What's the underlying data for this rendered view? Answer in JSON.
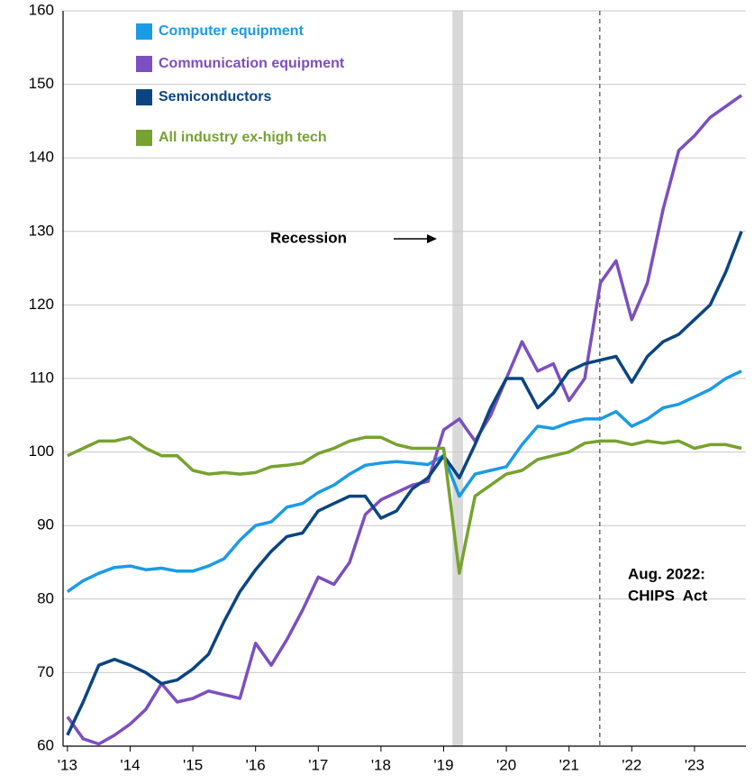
{
  "chart_data": {
    "type": "line",
    "x": [
      2013,
      2013.25,
      2013.5,
      2013.75,
      2014,
      2014.25,
      2014.5,
      2014.75,
      2015,
      2015.25,
      2015.5,
      2015.75,
      2016,
      2016.25,
      2016.5,
      2016.75,
      2017,
      2017.25,
      2017.5,
      2017.75,
      2018,
      2018.25,
      2018.5,
      2018.75,
      2019,
      2019.25,
      2019.5,
      2019.75,
      2020,
      2020.25,
      2020.5,
      2020.75,
      2021,
      2021.25,
      2021.5,
      2021.75,
      2022,
      2022.25,
      2022.5,
      2022.75,
      2023,
      2023.25,
      2023.5,
      2023.75
    ],
    "series": [
      {
        "name": "Computer equipment",
        "color": "#1a9be6",
        "values": [
          81,
          82.5,
          83.5,
          84.3,
          84.5,
          84,
          84.2,
          83.8,
          83.8,
          84.5,
          85.5,
          88,
          90,
          90.5,
          92.5,
          93,
          94.5,
          95.5,
          97,
          98.2,
          98.5,
          98.7,
          98.5,
          98.3,
          99.5,
          94,
          97,
          97.5,
          98,
          101,
          103.5,
          103.2,
          104,
          104.5,
          104.5,
          105.5,
          103.5,
          104.5,
          106,
          106.5,
          107.5,
          108.5,
          110,
          111
        ]
      },
      {
        "name": "Communication equipment",
        "color": "#7b4fc0",
        "values": [
          64,
          61,
          60.3,
          61.5,
          63,
          65,
          68.5,
          66,
          66.5,
          67.5,
          67,
          66.5,
          74,
          71,
          74.5,
          78.5,
          83,
          82,
          85,
          91.5,
          93.5,
          94.5,
          95.5,
          96,
          103,
          104.5,
          101.5,
          105,
          110,
          115,
          111,
          112,
          107,
          110,
          123,
          126,
          118,
          123,
          133,
          141,
          143,
          145.5,
          147,
          148.5
        ]
      },
      {
        "name": "Semiconductors",
        "color": "#0b4580",
        "values": [
          61.5,
          66,
          71,
          71.8,
          71,
          70,
          68.5,
          69,
          70.5,
          72.5,
          77,
          81,
          84,
          86.5,
          88.5,
          89,
          92,
          93,
          94,
          94,
          91,
          92,
          95,
          96.5,
          99.5,
          96.5,
          101,
          106,
          110,
          110,
          106,
          108,
          111,
          112,
          112.5,
          113,
          109.5,
          113,
          115,
          116,
          118,
          120,
          124.5,
          130
        ]
      },
      {
        "name": "All industry ex-high tech",
        "color": "#77a22f",
        "values": [
          99.5,
          100.5,
          101.5,
          101.5,
          102,
          100.5,
          99.5,
          99.5,
          97.5,
          97,
          97.2,
          97,
          97.2,
          98,
          98.2,
          98.5,
          99.8,
          100.5,
          101.5,
          102,
          102,
          101,
          100.5,
          100.5,
          100.5,
          83.5,
          94,
          95.5,
          97,
          97.5,
          99,
          99.5,
          100,
          101.2,
          101.5,
          101.5,
          101,
          101.5,
          101.2,
          101.5,
          100.5,
          101,
          101,
          100.5
        ]
      }
    ],
    "xlim": [
      2012.93,
      2023.82
    ],
    "xticks": [
      {
        "value": 2013,
        "label": "'13"
      },
      {
        "value": 2014,
        "label": "'14"
      },
      {
        "value": 2015,
        "label": "'15"
      },
      {
        "value": 2016,
        "label": "'16"
      },
      {
        "value": 2017,
        "label": "'17"
      },
      {
        "value": 2018,
        "label": "'18"
      },
      {
        "value": 2019,
        "label": "'19"
      },
      {
        "value": 2020,
        "label": "'20"
      },
      {
        "value": 2021,
        "label": "'21"
      },
      {
        "value": 2022,
        "label": "'22"
      },
      {
        "value": 2023,
        "label": "'23"
      }
    ],
    "ylim": [
      60,
      160
    ],
    "yticks": [
      60,
      70,
      80,
      90,
      100,
      110,
      120,
      130,
      140,
      150,
      160
    ],
    "grid": true,
    "shaded_region": {
      "x": [
        2019.14,
        2019.31
      ],
      "color": "#d9d9d9"
    },
    "vline": {
      "x": 2021.49,
      "color": "#555555"
    },
    "annotations": [
      "Recession",
      "Aug. 2022:",
      "CHIPS  Act"
    ]
  }
}
